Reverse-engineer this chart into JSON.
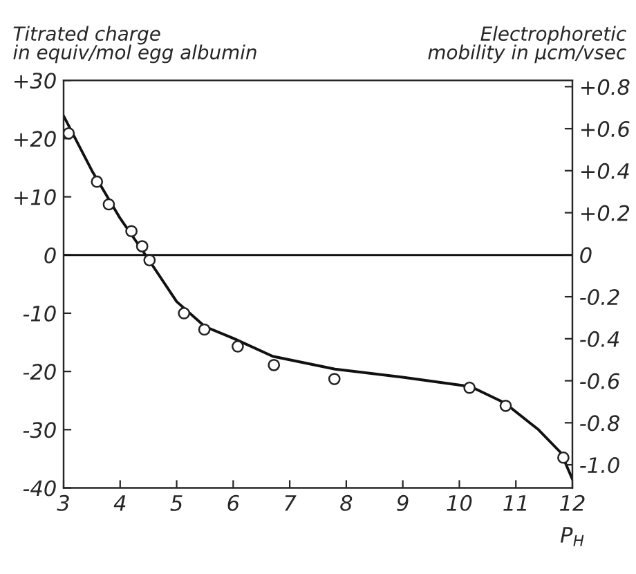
{
  "chart_data": {
    "type": "scatter",
    "ylabel": "Titrated charge\nin equiv/mol egg albumin",
    "y2label": "Electrophoretic\nmobility in µcm/vsec",
    "xlabel": "P$_{H}$",
    "xlim": [
      3,
      12
    ],
    "xticks": [
      3,
      4,
      5,
      6,
      7,
      8,
      9,
      10,
      11,
      12
    ],
    "ylim": [
      -40,
      30
    ],
    "yticks": [
      {
        "value": -40,
        "label": "-40"
      },
      {
        "value": -30,
        "label": "-30"
      },
      {
        "value": -20,
        "label": "-20"
      },
      {
        "value": -10,
        "label": "-10"
      },
      0,
      {
        "value": 10,
        "label": "+10"
      },
      {
        "value": 20,
        "label": "+20"
      },
      {
        "value": 30,
        "label": "+30"
      }
    ],
    "y2lim": [
      -1.11,
      0.83
    ],
    "y2ticks": [
      {
        "value": -1.0,
        "label": "-1.0"
      },
      {
        "value": -0.8,
        "label": "-0.8"
      },
      {
        "value": -0.6,
        "label": "-0.6"
      },
      {
        "value": -0.4,
        "label": "-0.4"
      },
      {
        "value": -0.2,
        "label": "-0.2"
      },
      0,
      {
        "value": 0.2,
        "label": "+0.2"
      },
      {
        "value": 0.4,
        "label": "+0.4"
      },
      {
        "value": 0.6,
        "label": "+0.6"
      },
      {
        "value": 0.8,
        "label": "+0.8"
      }
    ],
    "series": [
      {
        "color": "#222222",
        "marker": "circle",
        "x": [
          3.09,
          3.59,
          3.8,
          4.2,
          4.39,
          4.52,
          5.13,
          5.49,
          6.08,
          6.72,
          7.79,
          10.18,
          10.82,
          11.84
        ],
        "values": [
          20.9,
          12.6,
          8.7,
          4.1,
          1.5,
          -0.9,
          -10.0,
          -12.8,
          -15.7,
          -18.9,
          -21.3,
          -22.8,
          -25.9,
          -34.8
        ]
      },
      {
        "type": "line",
        "color": "#111111",
        "marker": "none",
        "line_style": "solid",
        "x": [
          3,
          3.5,
          4,
          4.45,
          5,
          5.5,
          6,
          6.7,
          7.8,
          9,
          10.2,
          10.8,
          11.4,
          11.8,
          12
        ],
        "values": [
          23.9,
          14.5,
          6.3,
          0,
          -8.0,
          -12.3,
          -14.3,
          -17.4,
          -19.6,
          -21.0,
          -22.6,
          -25.4,
          -30.0,
          -34.0,
          -38.5
        ]
      }
    ],
    "ref_lines": [
      {
        "axis": "y",
        "value": 0,
        "color": "#111111",
        "line_style": "solid"
      }
    ],
    "grid": false,
    "legend": false
  }
}
